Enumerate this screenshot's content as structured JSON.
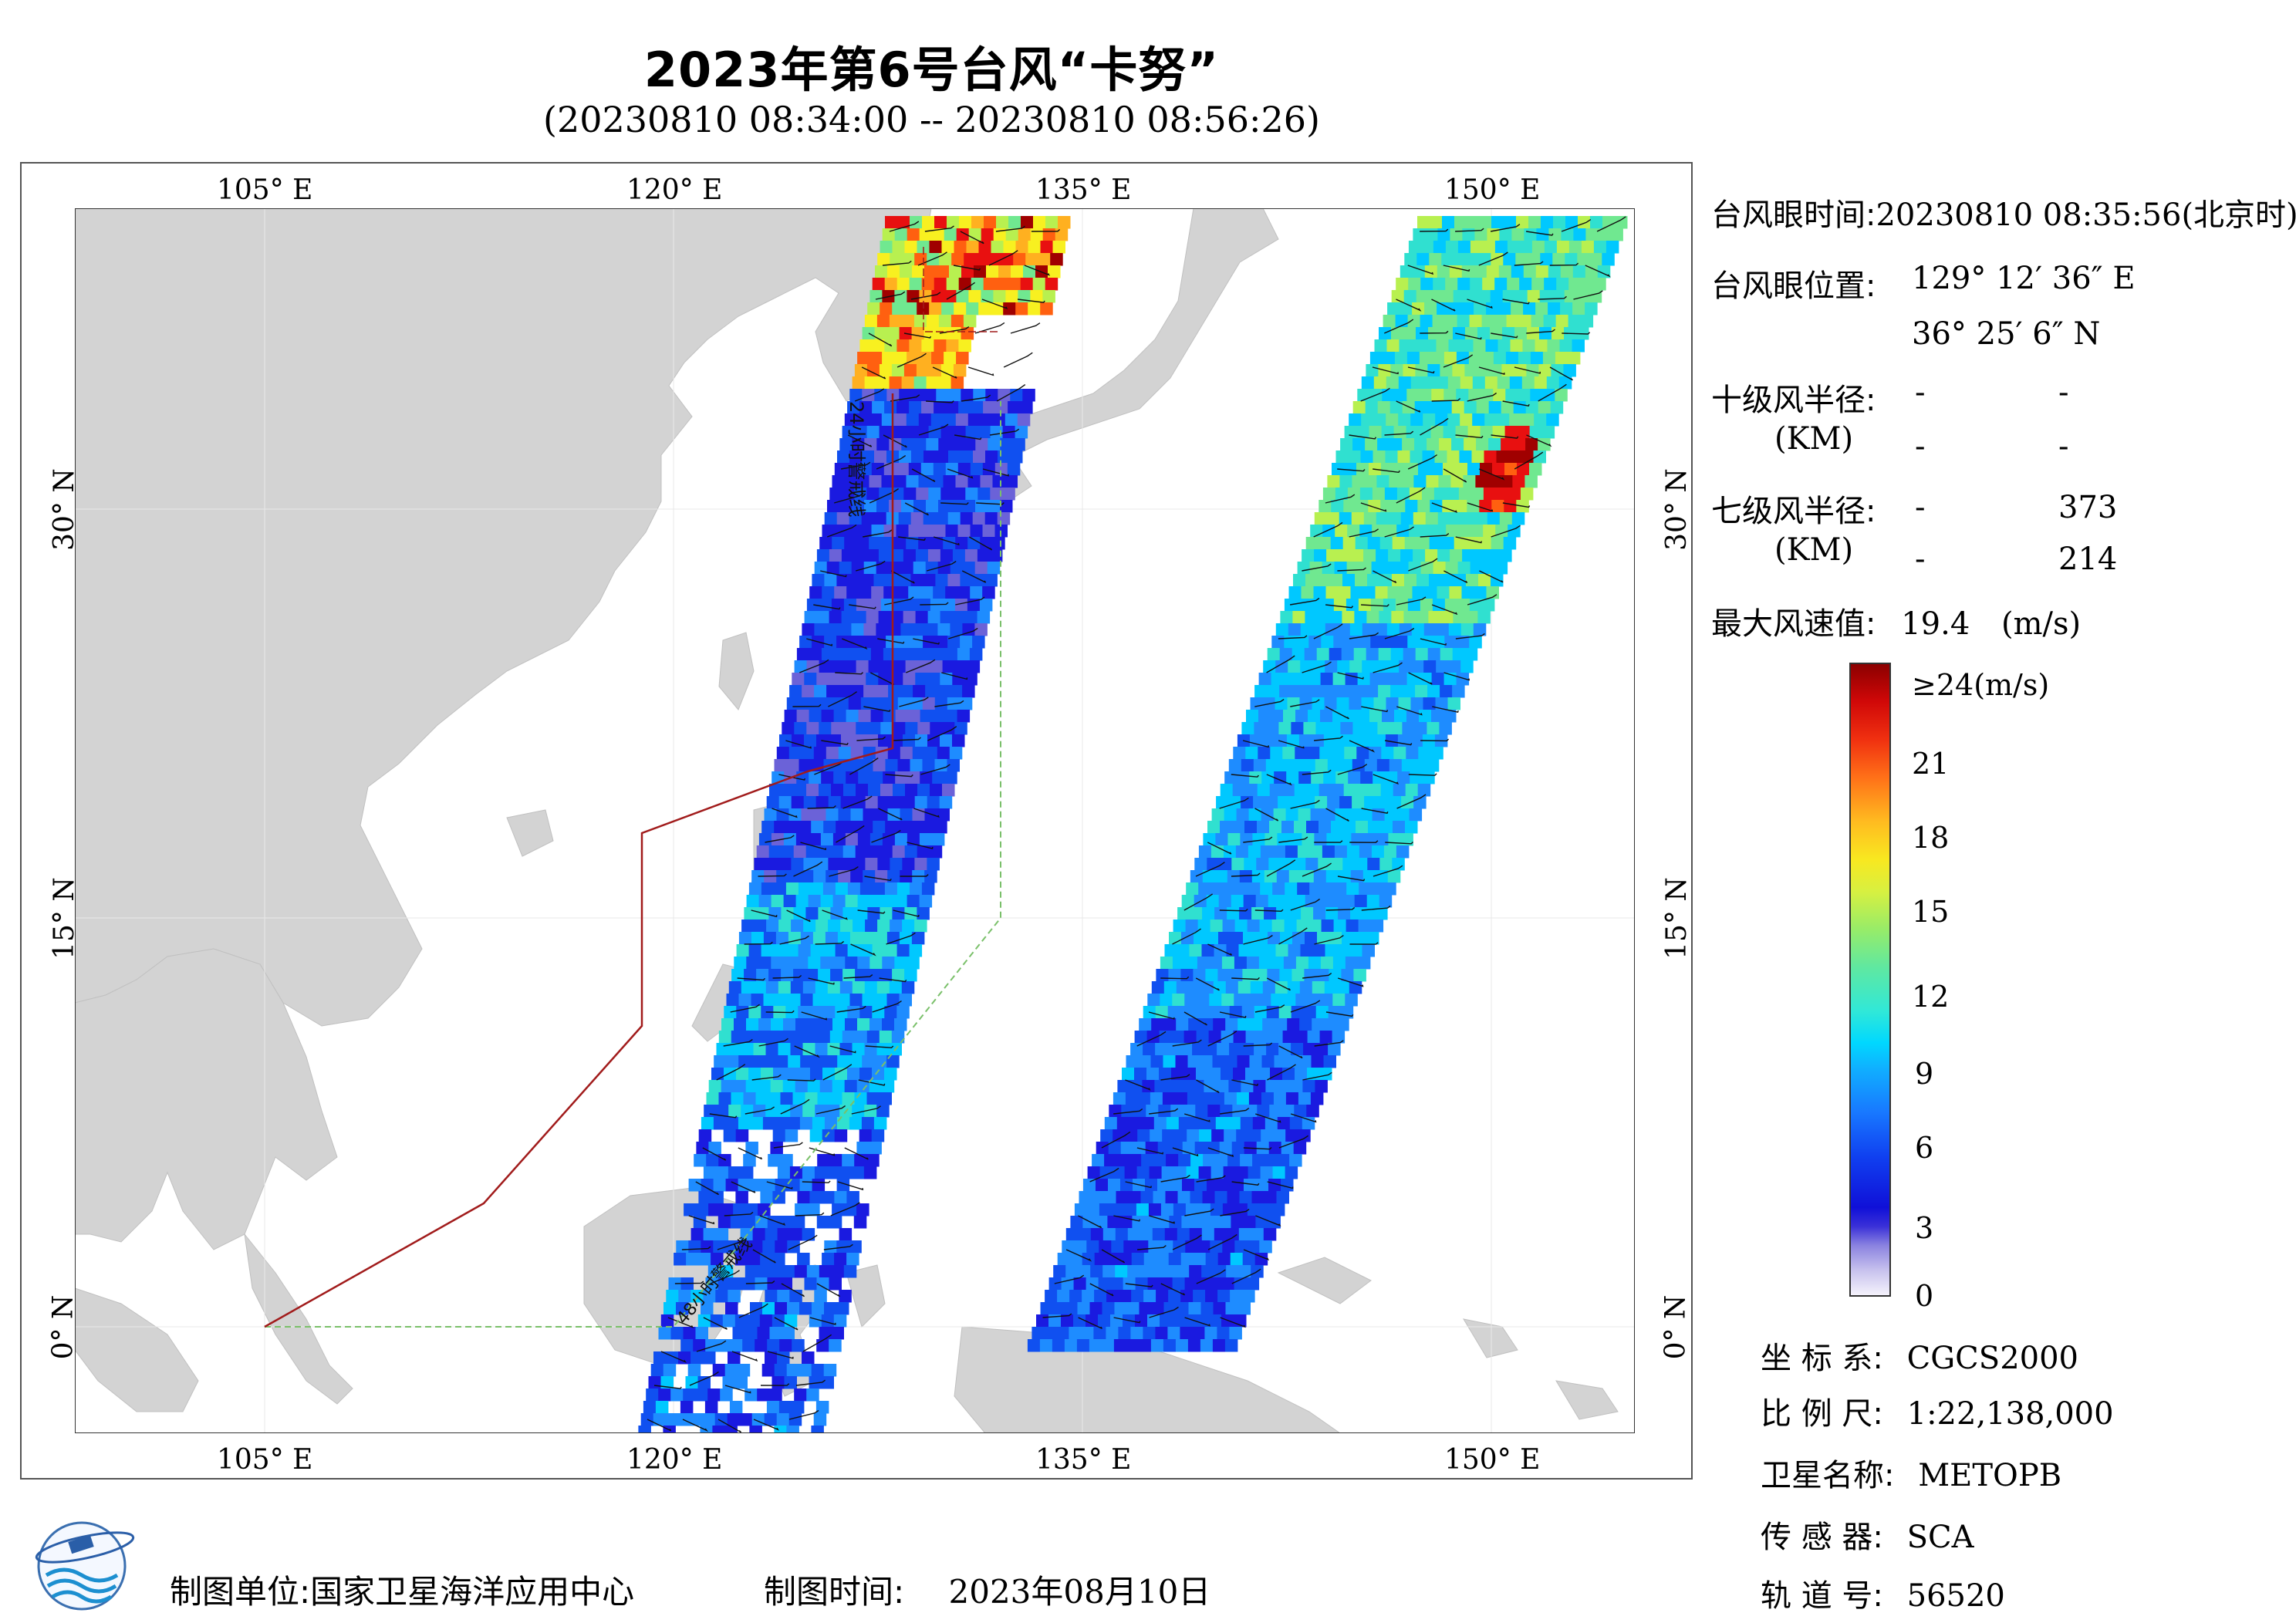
{
  "title": "2023年第6号台风“卡努”",
  "subtitle": "(20230810 08:34:00 -- 20230810 08:56:26)",
  "axes": {
    "top_lon": [
      "105° E",
      "120° E",
      "135° E",
      "150° E"
    ],
    "bottom_lon": [
      "105° E",
      "120° E",
      "135° E",
      "150° E"
    ],
    "left_lat": [
      "30° N",
      "15° N",
      "0° N"
    ],
    "right_lat": [
      "30° N",
      "15° N",
      "0° N"
    ]
  },
  "map_labels": {
    "line_24h": "24小时警戒线",
    "line_48h": "48小时警戒线"
  },
  "info": {
    "eye_time_label": "台风眼时间:",
    "eye_time_value": "20230810 08:35:56(北京时)",
    "eye_pos_label": "台风眼位置:",
    "eye_lon": "129° 12′ 36″ E",
    "eye_lat": "36° 25′ 6″ N",
    "r10_label": "十级风半径:",
    "r10_unit": "(KM)",
    "r10_row1": [
      "-",
      "-"
    ],
    "r10_row2": [
      "-",
      "-"
    ],
    "r7_label": "七级风半径:",
    "r7_unit": "(KM)",
    "r7_row1": [
      "-",
      "373"
    ],
    "r7_row2": [
      "-",
      "214"
    ],
    "max_label": "最大风速值:",
    "max_value": "19.4",
    "max_unit": "(m/s)"
  },
  "colorbar": {
    "top_label": "≥24(m/s)",
    "ticks": [
      "21",
      "18",
      "15",
      "12",
      "9",
      "6",
      "3",
      "0"
    ],
    "colors": [
      "#f2f0fa",
      "#b8b2e8",
      "#6b62d8",
      "#1a1ae0",
      "#1050f0",
      "#1e8cff",
      "#00c8ff",
      "#30e0d0",
      "#70e890",
      "#b8f050",
      "#f8f020",
      "#ffb020",
      "#ff6010",
      "#e81010",
      "#a00000"
    ]
  },
  "meta": {
    "crs_label": "坐 标 系:",
    "crs_value": "CGCS2000",
    "scale_label": "比 例 尺:",
    "scale_value": "1:22,138,000",
    "sat_label": "卫星名称:",
    "sat_value": "METOPB",
    "sensor_label": "传 感 器:",
    "sensor_value": "SCA",
    "orbit_label": "轨 道 号:",
    "orbit_value": "56520"
  },
  "footer": {
    "unit_label": "制图单位:",
    "unit_value": "国家卫星海洋应用中心",
    "time_label": "制图时间:",
    "time_value": "2023年08月10日"
  }
}
